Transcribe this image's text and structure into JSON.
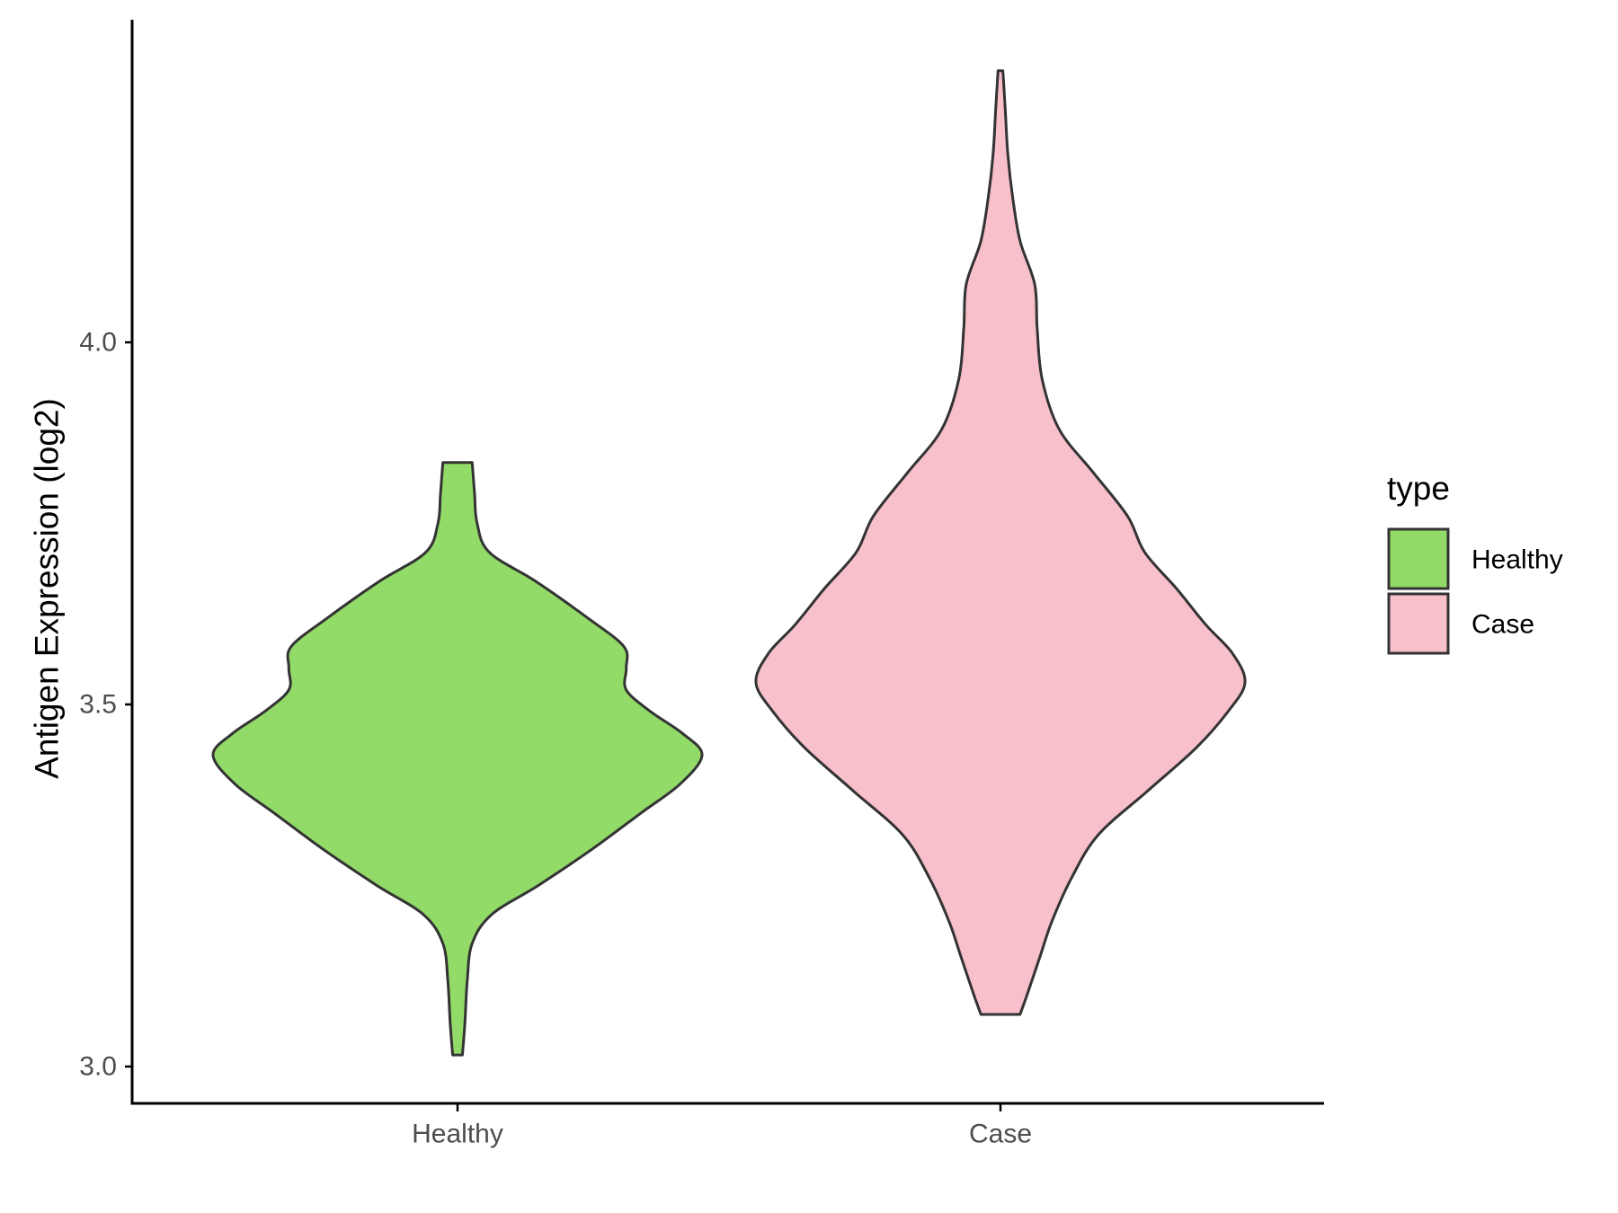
{
  "chart_data": {
    "type": "violin",
    "title": "",
    "xlabel": "",
    "ylabel": "Antigen Expression (log2)",
    "ylim": [
      2.94,
      4.44
    ],
    "yticks": [
      3.0,
      3.5,
      4.0
    ],
    "ytick_labels": [
      "3.0",
      "3.5",
      "4.0"
    ],
    "categories": [
      "Healthy",
      "Case"
    ],
    "legend": {
      "title": "type",
      "placement": "right",
      "entries": [
        {
          "label": "Healthy",
          "color": "#93DB69"
        },
        {
          "label": "Case",
          "color": "#F8C0CB"
        }
      ]
    },
    "series": [
      {
        "category": "Healthy",
        "color": "#93DB69",
        "min": 3.016,
        "max": 3.834,
        "density_profile": [
          [
            3.016,
            0.02
          ],
          [
            3.06,
            0.03
          ],
          [
            3.12,
            0.04
          ],
          [
            3.17,
            0.06
          ],
          [
            3.21,
            0.14
          ],
          [
            3.25,
            0.33
          ],
          [
            3.3,
            0.55
          ],
          [
            3.35,
            0.75
          ],
          [
            3.39,
            0.91
          ],
          [
            3.43,
            1.0
          ],
          [
            3.46,
            0.92
          ],
          [
            3.49,
            0.79
          ],
          [
            3.52,
            0.69
          ],
          [
            3.55,
            0.69
          ],
          [
            3.58,
            0.68
          ],
          [
            3.62,
            0.53
          ],
          [
            3.67,
            0.32
          ],
          [
            3.71,
            0.13
          ],
          [
            3.75,
            0.08
          ],
          [
            3.79,
            0.07
          ],
          [
            3.834,
            0.06
          ]
        ]
      },
      {
        "category": "Case",
        "color": "#F8C0CB",
        "min": 3.072,
        "max": 4.375,
        "density_profile": [
          [
            3.072,
            0.08
          ],
          [
            3.1,
            0.11
          ],
          [
            3.15,
            0.16
          ],
          [
            3.2,
            0.21
          ],
          [
            3.26,
            0.29
          ],
          [
            3.32,
            0.4
          ],
          [
            3.38,
            0.6
          ],
          [
            3.44,
            0.8
          ],
          [
            3.49,
            0.93
          ],
          [
            3.53,
            1.0
          ],
          [
            3.57,
            0.95
          ],
          [
            3.61,
            0.84
          ],
          [
            3.66,
            0.72
          ],
          [
            3.71,
            0.59
          ],
          [
            3.76,
            0.52
          ],
          [
            3.82,
            0.38
          ],
          [
            3.88,
            0.24
          ],
          [
            3.95,
            0.17
          ],
          [
            4.02,
            0.15
          ],
          [
            4.08,
            0.14
          ],
          [
            4.14,
            0.08
          ],
          [
            4.2,
            0.05
          ],
          [
            4.26,
            0.03
          ],
          [
            4.32,
            0.02
          ],
          [
            4.375,
            0.01
          ]
        ]
      }
    ]
  }
}
